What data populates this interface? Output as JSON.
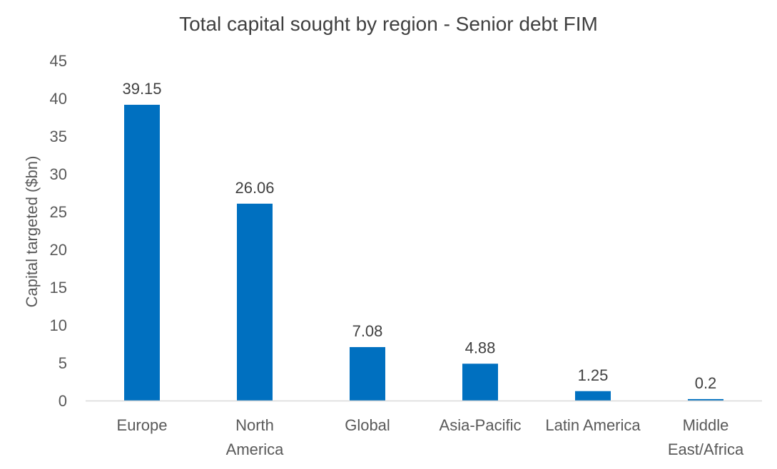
{
  "chart_data": {
    "type": "bar",
    "title": "Total capital sought by region - Senior debt FIM",
    "xlabel": "",
    "ylabel": "Capital targeted ($bn)",
    "categories": [
      [
        "Europe"
      ],
      [
        "North",
        "America"
      ],
      [
        "Global"
      ],
      [
        "Asia-Pacific"
      ],
      [
        "Latin America"
      ],
      [
        "Middle",
        "East/Africa"
      ]
    ],
    "values": [
      39.15,
      26.06,
      7.08,
      4.88,
      1.25,
      0.2
    ],
    "data_labels": [
      "39.15",
      "26.06",
      "7.08",
      "4.88",
      "1.25",
      "0.2"
    ],
    "ylim": [
      0,
      45
    ],
    "yticks": [
      0,
      5,
      10,
      15,
      20,
      25,
      30,
      35,
      40,
      45
    ],
    "grid": false,
    "legend": "none",
    "bar_color": "#0070C0",
    "axis_color": "#D9D9D9"
  }
}
